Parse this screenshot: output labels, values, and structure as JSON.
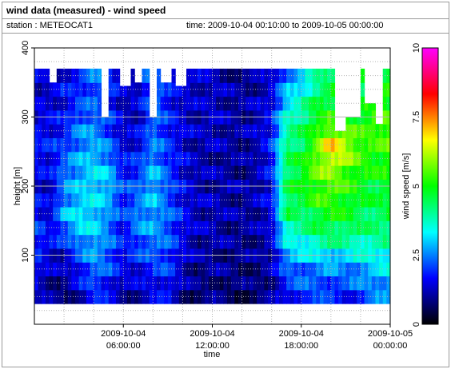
{
  "header": {
    "title": "wind data (measured) - wind speed",
    "station": "station : METEOCAT1",
    "time_range": "time: 2009-10-04 00:10:00 to 2009-10-05 00:00:00"
  },
  "colors": {
    "gradient": [
      "#000000",
      "#0000ff",
      "#00ffff",
      "#00ff00",
      "#ffff00",
      "#ff0000",
      "#ff00ff"
    ],
    "missing": "#ffffff",
    "grid": "#b4b4b4"
  },
  "chart_data": {
    "type": "heatmap",
    "title": "",
    "xlabel": "time",
    "ylabel": "height [m]",
    "colorbar_label": "wind speed [m/s]",
    "x_ticks": [
      {
        "hours": 6,
        "line1": "2009-10-04",
        "line2": "06:00:00"
      },
      {
        "hours": 12,
        "line1": "2009-10-04",
        "line2": "12:00:00"
      },
      {
        "hours": 18,
        "line1": "2009-10-04",
        "line2": "18:00:00"
      },
      {
        "hours": 24,
        "line1": "2009-10-05",
        "line2": "00:00:00"
      }
    ],
    "xlim_hours": [
      0,
      24
    ],
    "y_ticks": [
      100,
      200,
      300,
      400
    ],
    "ylim": [
      0,
      400
    ],
    "colorbar_ticks": [
      "0",
      "2.5",
      "5",
      "7.5",
      "10"
    ],
    "colorbar_range": [
      0,
      10
    ],
    "grid": true,
    "height_bins_m": [
      40,
      60,
      80,
      100,
      120,
      140,
      160,
      180,
      200,
      220,
      240,
      260,
      280,
      300,
      320,
      340,
      360
    ],
    "anchor_profiles": [
      {
        "time_h": 0.2,
        "speeds": [
          1.2,
          1.4,
          1.6,
          1.8,
          2.0,
          2.0,
          1.8,
          1.6,
          1.5,
          1.6,
          1.7,
          1.8,
          1.6,
          1.5,
          1.4,
          1.3,
          1.3
        ]
      },
      {
        "time_h": 1.0,
        "speeds": [
          0.9,
          1.0,
          1.2,
          1.4,
          1.6,
          1.5,
          1.4,
          1.3,
          1.3,
          1.4,
          1.6,
          1.7,
          1.6,
          1.5,
          1.4,
          1.3,
          1.2
        ]
      },
      {
        "time_h": 2.0,
        "speeds": [
          0.7,
          0.9,
          1.1,
          1.3,
          1.8,
          2.4,
          2.8,
          2.6,
          2.4,
          2.5,
          2.2,
          1.9,
          1.8,
          1.6,
          1.5,
          1.6,
          1.5
        ]
      },
      {
        "time_h": 3.0,
        "speeds": [
          1.2,
          1.5,
          1.8,
          2.1,
          2.6,
          3.1,
          3.2,
          3.0,
          2.9,
          2.8,
          2.7,
          2.6,
          2.5,
          2.3,
          2.0,
          1.9,
          1.8
        ]
      },
      {
        "time_h": 4.0,
        "speeds": [
          1.8,
          2.1,
          2.4,
          2.7,
          2.9,
          3.0,
          3.2,
          3.1,
          3.2,
          3.1,
          3.0,
          2.8,
          2.6,
          2.4,
          2.2,
          2.3,
          2.4
        ]
      },
      {
        "time_h": 5.0,
        "speeds": [
          1.5,
          1.8,
          2.1,
          2.3,
          2.4,
          2.5,
          2.6,
          2.8,
          3.0,
          2.9,
          2.6,
          2.3,
          2.1,
          2.0,
          1.9,
          2.0,
          2.1
        ]
      },
      {
        "time_h": 6.0,
        "speeds": [
          1.0,
          1.2,
          1.5,
          1.6,
          1.6,
          1.7,
          1.8,
          1.9,
          1.9,
          1.8,
          1.6,
          1.4,
          1.3,
          1.3,
          1.2,
          1.2,
          1.2
        ]
      },
      {
        "time_h": 7.0,
        "speeds": [
          1.1,
          1.3,
          1.6,
          1.9,
          2.2,
          2.5,
          2.6,
          2.4,
          2.2,
          2.0,
          1.8,
          1.6,
          1.4,
          1.3,
          1.3,
          1.4,
          1.5
        ]
      },
      {
        "time_h": 8.0,
        "speeds": [
          1.4,
          1.6,
          1.9,
          2.2,
          2.5,
          2.7,
          2.8,
          2.9,
          3.0,
          2.9,
          2.7,
          2.5,
          2.4,
          2.4,
          2.5,
          2.6,
          2.6
        ]
      },
      {
        "time_h": 9.0,
        "speeds": [
          1.6,
          1.8,
          2.0,
          2.1,
          2.2,
          2.3,
          2.3,
          2.2,
          2.2,
          2.1,
          2.0,
          1.9,
          1.9,
          1.8,
          1.8,
          1.7,
          1.8
        ]
      },
      {
        "time_h": 10.0,
        "speeds": [
          0.9,
          1.1,
          1.2,
          1.4,
          1.5,
          1.6,
          1.7,
          1.6,
          1.5,
          1.5,
          1.5,
          1.4,
          1.4,
          1.4,
          1.3,
          1.4,
          1.4
        ]
      },
      {
        "time_h": 11.0,
        "speeds": [
          0.7,
          0.8,
          0.9,
          1.0,
          1.1,
          1.2,
          1.2,
          1.2,
          1.2,
          1.2,
          1.1,
          1.1,
          1.2,
          1.2,
          1.2,
          1.3,
          1.3
        ]
      },
      {
        "time_h": 12.0,
        "speeds": [
          0.8,
          0.9,
          1.0,
          1.0,
          1.1,
          1.2,
          1.2,
          1.2,
          1.1,
          1.1,
          1.1,
          1.2,
          1.3,
          1.3,
          1.3,
          1.3,
          1.2
        ]
      },
      {
        "time_h": 13.0,
        "speeds": [
          0.7,
          0.8,
          0.9,
          0.9,
          1.0,
          1.0,
          1.1,
          1.1,
          1.1,
          1.1,
          1.0,
          1.1,
          1.1,
          1.1,
          1.1,
          1.1,
          1.0
        ]
      },
      {
        "time_h": 14.0,
        "speeds": [
          0.6,
          0.7,
          0.8,
          0.9,
          0.9,
          1.0,
          1.0,
          1.0,
          1.0,
          0.9,
          0.9,
          1.0,
          1.0,
          1.0,
          1.0,
          1.0,
          0.9
        ]
      },
      {
        "time_h": 15.0,
        "speeds": [
          0.7,
          0.8,
          0.8,
          0.9,
          1.0,
          1.0,
          1.1,
          1.2,
          1.2,
          1.1,
          1.1,
          1.2,
          1.3,
          1.3,
          1.2,
          1.1,
          1.0
        ]
      },
      {
        "time_h": 16.0,
        "speeds": [
          0.9,
          1.0,
          1.1,
          1.2,
          1.3,
          1.4,
          1.5,
          1.6,
          1.6,
          1.7,
          1.8,
          1.8,
          1.7,
          1.6,
          1.5,
          1.4,
          1.3
        ]
      },
      {
        "time_h": 17.0,
        "speeds": [
          1.6,
          1.9,
          2.3,
          2.8,
          3.3,
          3.9,
          4.4,
          4.6,
          4.5,
          4.4,
          4.4,
          4.2,
          4.0,
          3.6,
          3.2,
          2.8,
          2.5
        ]
      },
      {
        "time_h": 18.0,
        "speeds": [
          2.0,
          2.2,
          2.4,
          3.0,
          3.5,
          3.9,
          4.3,
          4.6,
          4.8,
          4.9,
          4.7,
          4.4,
          4.3,
          4.1,
          3.7,
          3.3,
          2.9
        ]
      },
      {
        "time_h": 19.0,
        "speeds": [
          2.0,
          2.3,
          2.4,
          3.2,
          3.9,
          4.4,
          4.8,
          5.2,
          5.4,
          5.6,
          5.7,
          5.5,
          5.2,
          4.9,
          4.6,
          4.2,
          3.8
        ]
      },
      {
        "time_h": 20.0,
        "speeds": [
          1.8,
          2.2,
          2.6,
          3.3,
          4.0,
          4.6,
          5.0,
          5.3,
          5.6,
          5.9,
          6.5,
          7.0,
          6.0,
          5.2,
          4.8,
          4.6,
          4.4
        ]
      },
      {
        "time_h": 21.0,
        "speeds": [
          1.7,
          2.1,
          2.4,
          3.1,
          3.9,
          4.5,
          4.8,
          5.1,
          5.2,
          5.5,
          6.0,
          6.2,
          5.6,
          5.0,
          4.6,
          4.4,
          4.2
        ]
      },
      {
        "time_h": 22.0,
        "speeds": [
          2.0,
          2.4,
          2.8,
          3.3,
          3.9,
          4.2,
          4.5,
          4.7,
          4.9,
          5.1,
          5.3,
          5.4,
          5.2,
          5.0,
          4.8,
          4.6,
          4.5
        ]
      },
      {
        "time_h": 23.0,
        "speeds": [
          2.4,
          2.7,
          3.0,
          3.4,
          3.9,
          4.2,
          4.4,
          4.5,
          4.7,
          4.9,
          5.1,
          5.2,
          5.4,
          5.3,
          5.0,
          4.8,
          4.6
        ]
      },
      {
        "time_h": 24.0,
        "speeds": [
          2.5,
          2.8,
          3.2,
          3.6,
          4.0,
          4.3,
          4.5,
          4.7,
          4.9,
          5.1,
          5.3,
          5.5,
          5.6,
          5.4,
          5.2,
          5.0,
          4.8
        ]
      }
    ],
    "missing_top": [
      {
        "from_h": 1.0,
        "to_h": 1.5,
        "top_m": 350
      },
      {
        "from_h": 4.5,
        "to_h": 5.1,
        "top_m": 300
      },
      {
        "from_h": 5.8,
        "to_h": 6.5,
        "top_m": 345
      },
      {
        "from_h": 6.8,
        "to_h": 7.3,
        "top_m": 350
      },
      {
        "from_h": 7.7,
        "to_h": 8.2,
        "top_m": 300
      },
      {
        "from_h": 8.6,
        "to_h": 9.2,
        "top_m": 350
      },
      {
        "from_h": 9.5,
        "to_h": 10.3,
        "top_m": 345
      },
      {
        "from_h": 20.3,
        "to_h": 20.9,
        "top_m": 280
      },
      {
        "from_h": 21.0,
        "to_h": 22.0,
        "top_m": 300
      },
      {
        "from_h": 22.2,
        "to_h": 23.0,
        "top_m": 320
      },
      {
        "from_h": 23.0,
        "to_h": 23.6,
        "top_m": 290
      }
    ]
  }
}
